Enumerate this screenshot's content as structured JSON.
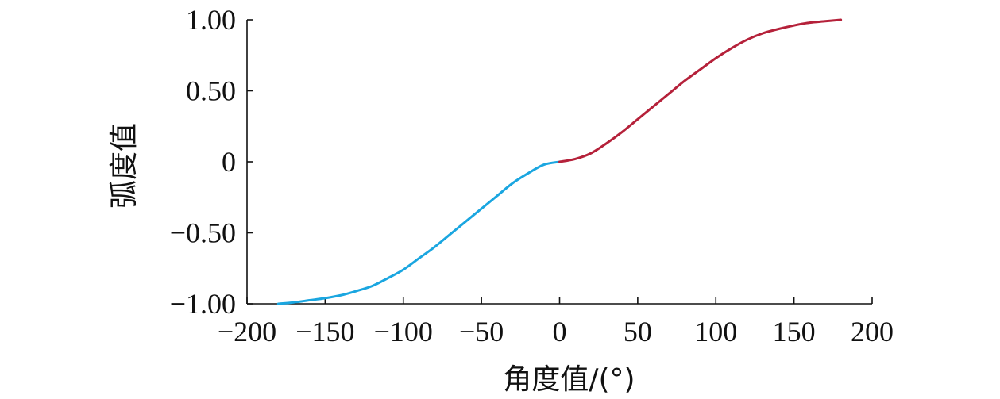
{
  "chart_data": {
    "type": "line",
    "xlabel": "角度值/(°)",
    "ylabel": "弧度值",
    "xlim": [
      -200,
      200
    ],
    "ylim": [
      -1.0,
      1.0
    ],
    "grid": false,
    "legend": "none",
    "x_ticks": [
      {
        "value": -200,
        "label": "−200"
      },
      {
        "value": -150,
        "label": "−150"
      },
      {
        "value": -100,
        "label": "−100"
      },
      {
        "value": -50,
        "label": "−50"
      },
      {
        "value": 0,
        "label": "0"
      },
      {
        "value": 50,
        "label": "50"
      },
      {
        "value": 100,
        "label": "100"
      },
      {
        "value": 150,
        "label": "150"
      },
      {
        "value": 200,
        "label": "200"
      }
    ],
    "y_ticks": [
      {
        "value": -1.0,
        "label": "−1.00"
      },
      {
        "value": -0.5,
        "label": "−0.50"
      },
      {
        "value": 0,
        "label": "0"
      },
      {
        "value": 0.5,
        "label": "0.50"
      },
      {
        "value": 1.0,
        "label": "1.00"
      }
    ],
    "series": [
      {
        "color": "#1aa6e0",
        "x": [
          -180,
          -170,
          -160,
          -150,
          -140,
          -130,
          -120,
          -110,
          -100,
          -90,
          -80,
          -70,
          -60,
          -50,
          -40,
          -30,
          -20,
          -10,
          0
        ],
        "y": [
          -1.0,
          -0.99,
          -0.975,
          -0.96,
          -0.94,
          -0.91,
          -0.875,
          -0.82,
          -0.76,
          -0.68,
          -0.6,
          -0.51,
          -0.42,
          -0.33,
          -0.24,
          -0.15,
          -0.08,
          -0.02,
          0.0
        ]
      },
      {
        "color": "#b5213a",
        "x": [
          0,
          10,
          20,
          30,
          40,
          50,
          60,
          70,
          80,
          90,
          100,
          110,
          120,
          130,
          140,
          150,
          160,
          170,
          180
        ],
        "y": [
          0.0,
          0.02,
          0.06,
          0.13,
          0.21,
          0.3,
          0.39,
          0.48,
          0.57,
          0.65,
          0.73,
          0.8,
          0.86,
          0.905,
          0.935,
          0.96,
          0.98,
          0.99,
          1.0
        ]
      }
    ]
  }
}
